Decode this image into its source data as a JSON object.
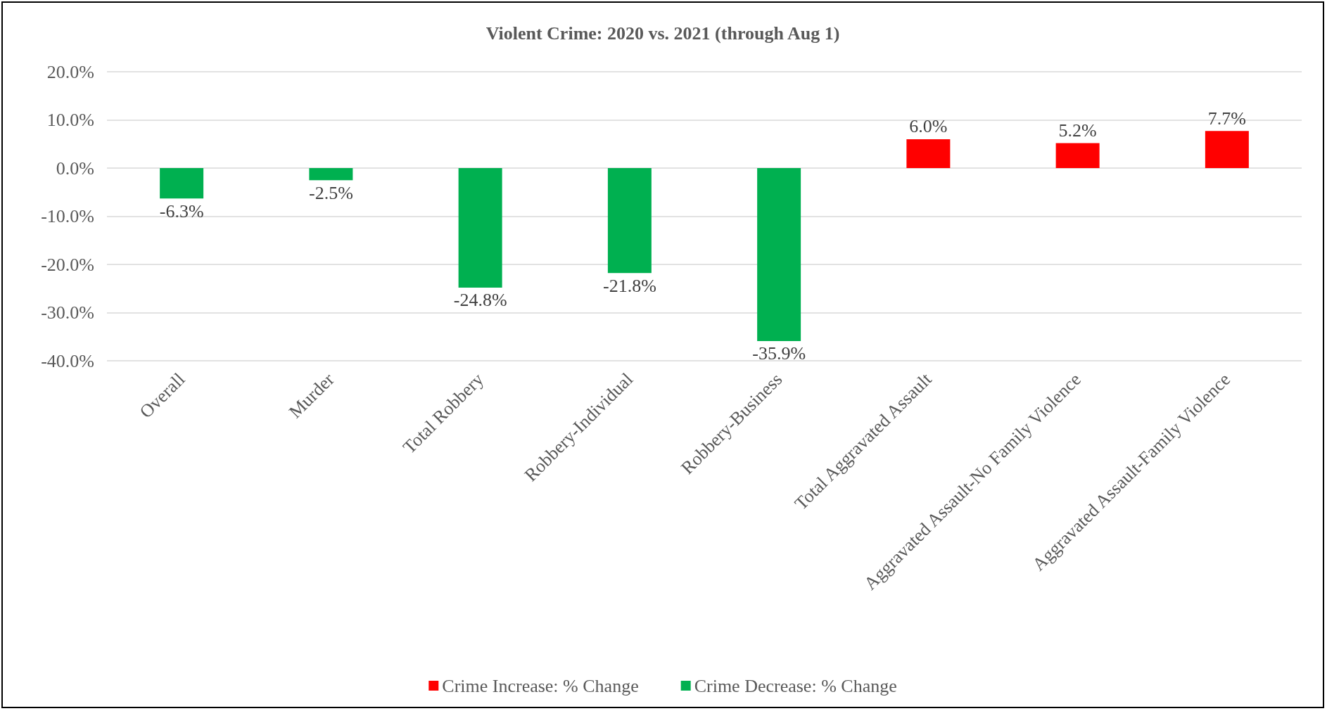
{
  "chart_data": {
    "type": "bar",
    "title": "Violent Crime: 2020 vs. 2021 (through Aug 1)",
    "categories": [
      "Overall",
      "Murder",
      "Total Robbery",
      "Robbery-Individual",
      "Robbery-Business",
      "Total Aggravated Assault",
      "Aggravated Assault-No Family Violence",
      "Aggravated Assault-Family Violence"
    ],
    "series": [
      {
        "name": "Crime Increase: % Change",
        "color": "#ff0000",
        "values": [
          null,
          null,
          null,
          null,
          null,
          6.0,
          5.2,
          7.7
        ],
        "value_labels": [
          null,
          null,
          null,
          null,
          null,
          "6.0%",
          "5.2%",
          "7.7%"
        ]
      },
      {
        "name": "Crime Decrease: % Change",
        "color": "#00b050",
        "values": [
          -6.3,
          -2.5,
          -24.8,
          -21.8,
          -35.9,
          null,
          null,
          null
        ],
        "value_labels": [
          "-6.3%",
          "-2.5%",
          "-24.8%",
          "-21.8%",
          "-35.9%",
          null,
          null,
          null
        ]
      }
    ],
    "stacked": true,
    "ylim": [
      -40,
      20
    ],
    "yticks": [
      {
        "value": -40,
        "label": "-40.0%"
      },
      {
        "value": -30,
        "label": "-30.0%"
      },
      {
        "value": -20,
        "label": "-20.0%"
      },
      {
        "value": -10,
        "label": "-10.0%"
      },
      {
        "value": 0,
        "label": "0.0%"
      },
      {
        "value": 10,
        "label": "10.0%"
      },
      {
        "value": 20,
        "label": "20.0%"
      }
    ],
    "grid": "y",
    "legend": "bottom"
  }
}
